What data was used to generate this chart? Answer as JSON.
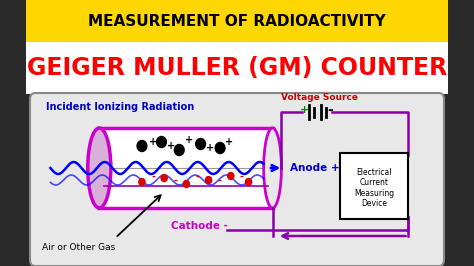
{
  "title1": "MEASUREMENT OF RADIOACTIVITY",
  "title2": "GEIGER MULLER (GM) COUNTER",
  "title1_color": "#000000",
  "title2_color": "#FF0000",
  "title1_bg": "#FFD700",
  "title2_bg": "#FFFFFF",
  "outer_bg": "#2a2a2a",
  "inner_bg": "#e8e8e8",
  "tube_color": "#CC00CC",
  "tube_fill": "#FFFFFF",
  "left_ell_fill": "#d8b0d8",
  "right_ell_fill": "#e8e8e8",
  "anode_label": "Anode +",
  "cathode_label": "Cathode -",
  "radiation_label": "Incident Ionizing Radiation",
  "gas_label": "Air or Other Gas",
  "voltage_label": "Voltage Source",
  "device_label": "Electrical\nCurrent\nMeasuring\nDevice",
  "radiation_color": "#0000FF",
  "label_color": "#0000CC",
  "anode_label_color": "#0000CC",
  "cathode_label_color": "#CC00CC",
  "voltage_label_color": "#CC0000",
  "circuit_color": "#8800AA",
  "gas_label_color": "#000000",
  "plus_battery_color": "#008800",
  "minus_battery_color": "#000000"
}
